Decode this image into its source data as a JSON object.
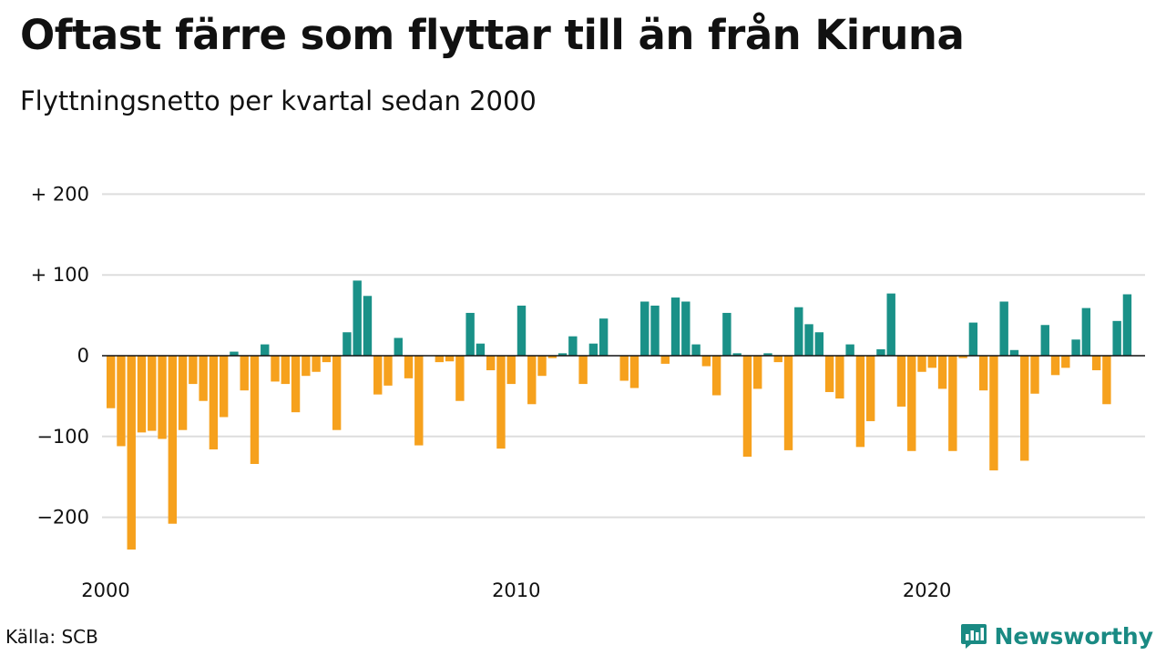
{
  "title": "Oftast färre som flyttar till än från Kiruna",
  "subtitle": "Flyttningsnetto per kvartal sedan 2000",
  "source": "Källa: SCB",
  "brand": "Newsworthy",
  "colors": {
    "positive": "#1a9188",
    "negative": "#f6a11d",
    "grid": "#dddddd",
    "zero": "#111111",
    "brand": "#1a8a83"
  },
  "chart_data": {
    "type": "bar",
    "title": "Oftast färre som flyttar till än från Kiruna",
    "subtitle": "Flyttningsnetto per kvartal sedan 2000",
    "xlabel": "",
    "ylabel": "",
    "ylim": [
      -250,
      200
    ],
    "yticks": [
      200,
      100,
      0,
      -100,
      -200
    ],
    "ytick_labels": [
      "+ 200",
      "+ 100",
      "0",
      "−100",
      "−200"
    ],
    "xticks": [
      2000,
      2010,
      2020
    ],
    "xtick_labels": [
      "2000",
      "2010",
      "2020"
    ],
    "grid": true,
    "start_year": 2000,
    "start_quarter": 1,
    "periods_per_year": 4,
    "values": [
      -65,
      -112,
      -240,
      -95,
      -93,
      -103,
      -208,
      -92,
      -35,
      -56,
      -116,
      -76,
      5,
      -43,
      -134,
      14,
      -32,
      -35,
      -70,
      -25,
      -20,
      -8,
      -92,
      29,
      93,
      74,
      -48,
      -37,
      22,
      -28,
      -111,
      0,
      -8,
      -7,
      -56,
      53,
      15,
      -18,
      -115,
      -35,
      62,
      -60,
      -25,
      -3,
      3,
      24,
      -35,
      15,
      46,
      0,
      -31,
      -40,
      67,
      62,
      -10,
      72,
      67,
      14,
      -13,
      -49,
      53,
      3,
      -125,
      -41,
      3,
      -8,
      -117,
      60,
      39,
      29,
      -45,
      -53,
      14,
      -113,
      -81,
      8,
      77,
      -63,
      -118,
      -20,
      -15,
      -41,
      -118,
      -3,
      41,
      -43,
      -142,
      67,
      7,
      -130,
      -47,
      38,
      -24,
      -15,
      20,
      59,
      -18,
      -60,
      43,
      76
    ]
  }
}
